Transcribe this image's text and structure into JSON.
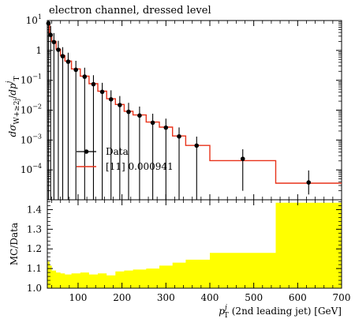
{
  "chart_data": [
    {
      "type": "line",
      "title": "electron channel, dressed level",
      "ylabel": "dσ_{W+≥2j}/dp_T^j",
      "ylabel_parts": {
        "main": "dσ",
        "sub": "W+≥2j",
        "slash": "/",
        "d": "dp",
        "T": "T",
        "j": "j"
      },
      "y_scale": "log",
      "xlim": [
        30,
        700
      ],
      "ylim": [
        1e-05,
        10
      ],
      "y_tick_labels": [
        {
          "value": 10,
          "base": "10",
          "exp": "1"
        },
        {
          "value": 1,
          "base": "1",
          "exp": ""
        },
        {
          "value": 0.1,
          "base": "10",
          "exp": "−1"
        },
        {
          "value": 0.01,
          "base": "10",
          "exp": "−2"
        },
        {
          "value": 0.001,
          "base": "10",
          "exp": "−3"
        },
        {
          "value": 0.0001,
          "base": "10",
          "exp": "−4"
        }
      ],
      "series": [
        {
          "name": "Data",
          "color": "#000000",
          "x": [
            32.5,
            37.5,
            45,
            55,
            65,
            77.5,
            95,
            115,
            135,
            155,
            175,
            195,
            215,
            240,
            270,
            300,
            330,
            370,
            475,
            625
          ],
          "y": [
            8.0,
            3.3,
            1.9,
            1.05,
            0.64,
            0.42,
            0.225,
            0.132,
            0.074,
            0.041,
            0.023,
            0.0148,
            0.0088,
            0.0066,
            0.0038,
            0.0026,
            0.00132,
            0.00065,
            0.000235,
            3.8e-05
          ],
          "y_err_low": [
            8.0,
            3.3,
            1.9,
            1.05,
            0.64,
            0.42,
            0.225,
            0.132,
            0.074,
            0.041,
            0.023,
            0.0148,
            0.0088,
            0.0066,
            0.0038,
            0.0026,
            0.00132,
            0.00065,
            0.000215,
            2.3e-05
          ],
          "y_err_high": [
            8.0,
            3.3,
            1.9,
            1.05,
            0.64,
            0.42,
            0.225,
            0.132,
            0.074,
            0.041,
            0.023,
            0.0148,
            0.0088,
            0.0066,
            0.0038,
            0.0026,
            0.00132,
            0.00065,
            0.000255,
            5.8e-05
          ]
        },
        {
          "name": "[11] 0.000941",
          "color": "#e8321a",
          "edges": [
            30,
            35,
            40,
            50,
            60,
            70,
            85,
            105,
            125,
            145,
            165,
            185,
            205,
            225,
            255,
            285,
            315,
            345,
            400,
            550,
            700
          ],
          "values": [
            7.5,
            3.5,
            2.0,
            1.1,
            0.67,
            0.44,
            0.24,
            0.138,
            0.077,
            0.043,
            0.024,
            0.0155,
            0.0092,
            0.0069,
            0.004,
            0.0027,
            0.00137,
            0.00066,
            0.000205,
            3.6e-05
          ]
        }
      ],
      "legend_placement": "lower-left"
    },
    {
      "type": "area",
      "ylabel": "MC/Data",
      "xlabel": "p_T^j (2nd leading jet) [GeV]",
      "xlabel_parts": {
        "p": "p",
        "T": "T",
        "j": "j",
        "rest": "(2nd leading jet) [GeV]"
      },
      "xlim": [
        30,
        700
      ],
      "ylim": [
        1.0,
        1.45
      ],
      "x_ticks": [
        100,
        200,
        300,
        400,
        500,
        600,
        700
      ],
      "y_ticks": [
        "1.0",
        "1.1",
        "1.2",
        "1.3",
        "1.4"
      ],
      "y_tick_values": [
        1.0,
        1.1,
        1.2,
        1.3,
        1.4
      ],
      "band_color": "#ffff00",
      "band": {
        "edges": [
          30,
          35,
          40,
          50,
          60,
          70,
          85,
          105,
          125,
          145,
          165,
          185,
          205,
          225,
          255,
          285,
          315,
          345,
          400,
          550,
          700
        ],
        "upper": [
          1.135,
          1.115,
          1.09,
          1.08,
          1.075,
          1.07,
          1.075,
          1.08,
          1.07,
          1.075,
          1.065,
          1.085,
          1.09,
          1.095,
          1.1,
          1.115,
          1.13,
          1.145,
          1.18,
          1.435
        ]
      }
    }
  ]
}
